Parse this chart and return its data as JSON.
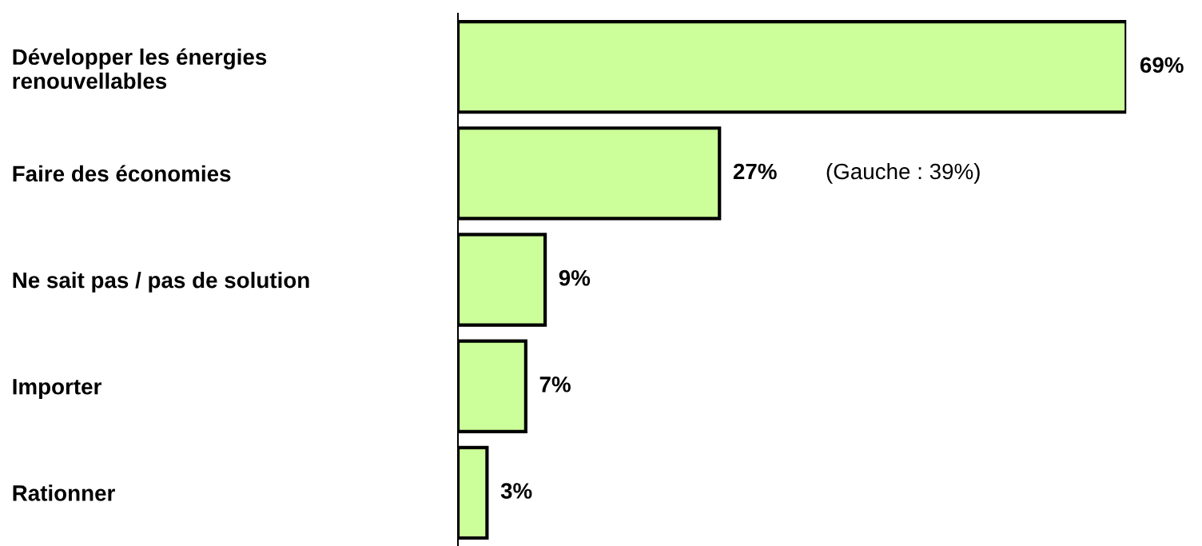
{
  "chart_data": {
    "type": "bar",
    "orientation": "horizontal",
    "categories": [
      "Développer les énergies\nrenouvellables",
      "Faire des économies",
      "Ne sait pas / pas de solution",
      "Importer",
      "Rationner"
    ],
    "values": [
      69,
      27,
      9,
      7,
      3
    ],
    "color": "#ccff99",
    "value_labels": [
      "69%",
      "27%",
      "9%",
      "7%",
      "3%"
    ],
    "annotations": [
      "(Gauche : 39%)"
    ],
    "tick_labels": "y",
    "grid": false,
    "legend": false
  }
}
